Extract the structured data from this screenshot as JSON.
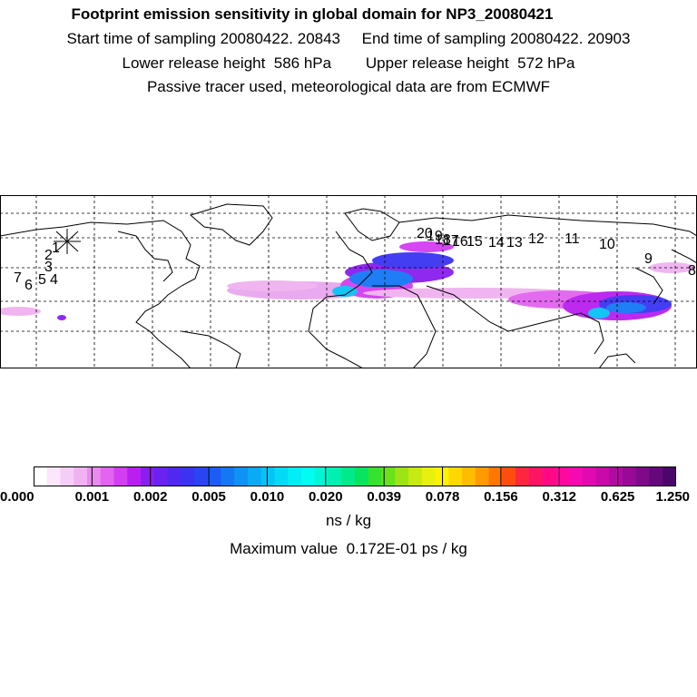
{
  "header": {
    "title": "Footprint emission sensitivity in global domain for NP3_20080421",
    "line1": "Start time of sampling 20080422. 20843     End time of sampling 20080422. 20903",
    "line2": "Lower release height  586 hPa        Upper release height  572 hPa",
    "line3": "Passive tracer used, meteorological data are from ECMWF"
  },
  "map": {
    "track_labels": [
      "1",
      "2",
      "3",
      "4",
      "5",
      "6",
      "7",
      "8",
      "9",
      "10",
      "11",
      "12",
      "13",
      "14",
      "15",
      "16",
      "17",
      "18",
      "19",
      "20"
    ],
    "colors": {
      "border": "#000000",
      "grid": "#000000"
    }
  },
  "colorbar": {
    "tick_labels": [
      "0.000",
      "0.001",
      "0.002",
      "0.005",
      "0.010",
      "0.020",
      "0.039",
      "0.078",
      "0.156",
      "0.312",
      "0.625",
      "1.250"
    ],
    "colors": [
      "#ffffff",
      "#fbe6fb",
      "#f6cdf6",
      "#f0b2f0",
      "#ea8aee",
      "#e264f0",
      "#d43ef2",
      "#b91ff0",
      "#8a1eef",
      "#6b22f0",
      "#5128ef",
      "#3a34f2",
      "#2a44f4",
      "#1c5cf5",
      "#1478f5",
      "#0f92f4",
      "#0aaaf5",
      "#07c2f5",
      "#04daf6",
      "#02eef7",
      "#00fdf0",
      "#00f6d4",
      "#00f0b0",
      "#00ea8a",
      "#08e45e",
      "#35e22e",
      "#6ae21a",
      "#9ee414",
      "#c7ea12",
      "#e8f010",
      "#fff200",
      "#ffd800",
      "#ffbc00",
      "#ff9a00",
      "#ff7600",
      "#ff4d10",
      "#ff2740",
      "#ff1464",
      "#ff0a84",
      "#ff089e",
      "#f40ab0",
      "#e00ab0",
      "#c80aa8",
      "#b00aa0",
      "#980a96",
      "#7e0a8a",
      "#64087c",
      "#4a066a"
    ],
    "unit": "ns / kg"
  },
  "footer": {
    "max_value_text": "Maximum value  0.172E-01 ps / kg"
  }
}
